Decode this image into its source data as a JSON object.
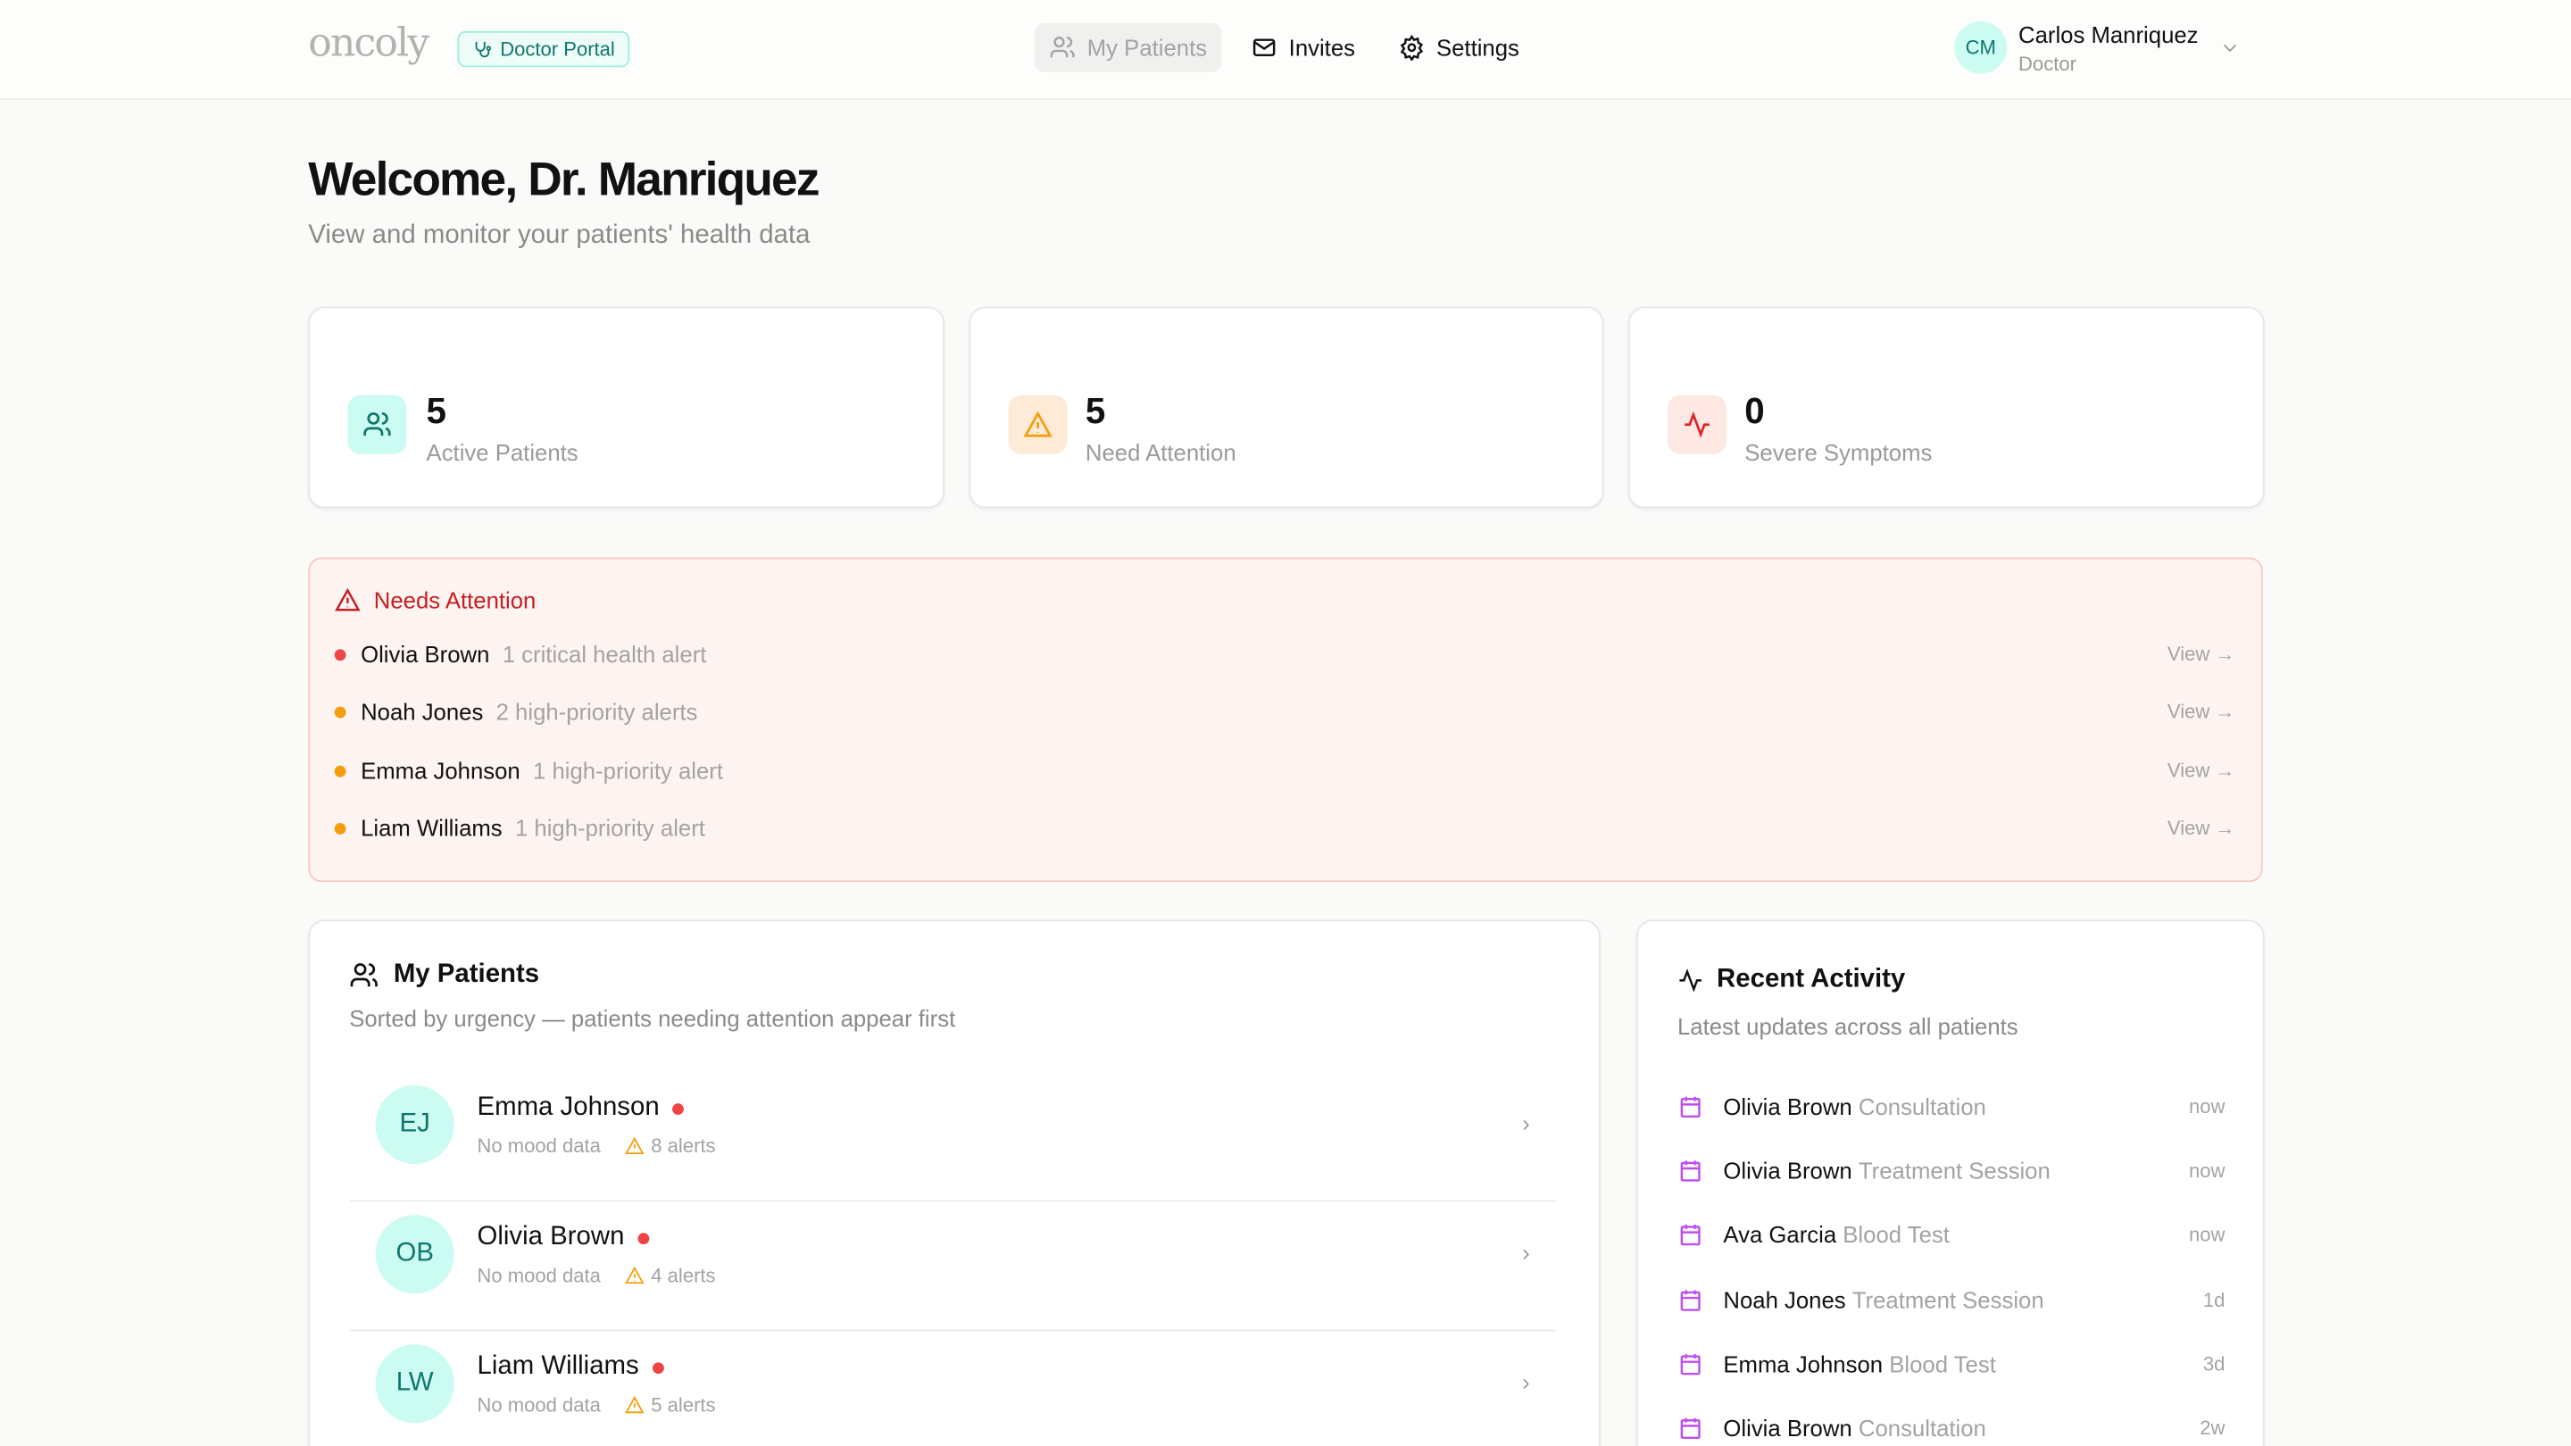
{
  "header": {
    "logo": "oncoly",
    "portal_badge": "Doctor Portal",
    "nav": [
      {
        "label": "My Patients",
        "icon": "users-icon",
        "active": true
      },
      {
        "label": "Invites",
        "icon": "mail-icon",
        "active": false
      },
      {
        "label": "Settings",
        "icon": "gear-icon",
        "active": false
      }
    ],
    "user": {
      "initials": "CM",
      "name": "Carlos Manriquez",
      "role": "Doctor"
    }
  },
  "page": {
    "title": "Welcome, Dr. Manriquez",
    "subtitle": "View and monitor your patients' health data"
  },
  "stats": [
    {
      "value": "5",
      "label": "Active Patients",
      "icon": "users-icon",
      "color": "#0f766e",
      "bg": "#ccfbf1"
    },
    {
      "value": "5",
      "label": "Need Attention",
      "icon": "warning-icon",
      "color": "#f59e0b",
      "bg": "#fdebd8"
    },
    {
      "value": "0",
      "label": "Severe Symptoms",
      "icon": "activity-icon",
      "color": "#dc2626",
      "bg": "#fde8e4"
    }
  ],
  "needs_attention": {
    "title": "Needs Attention",
    "items": [
      {
        "name": "Olivia Brown",
        "detail": "1 critical health alert",
        "severity": "critical",
        "action": "View →"
      },
      {
        "name": "Noah Jones",
        "detail": "2 high-priority alerts",
        "severity": "high",
        "action": "View →"
      },
      {
        "name": "Emma Johnson",
        "detail": "1 high-priority alert",
        "severity": "high",
        "action": "View →"
      },
      {
        "name": "Liam Williams",
        "detail": "1 high-priority alert",
        "severity": "high",
        "action": "View →"
      }
    ]
  },
  "patients": {
    "title": "My Patients",
    "subtitle": "Sorted by urgency — patients needing attention appear first",
    "items": [
      {
        "initials": "EJ",
        "name": "Emma Johnson",
        "mood": "No mood data",
        "alerts": "8 alerts"
      },
      {
        "initials": "OB",
        "name": "Olivia Brown",
        "mood": "No mood data",
        "alerts": "4 alerts"
      },
      {
        "initials": "LW",
        "name": "Liam Williams",
        "mood": "No mood data",
        "alerts": "5 alerts"
      }
    ]
  },
  "activity": {
    "title": "Recent Activity",
    "subtitle": "Latest updates across all patients",
    "items": [
      {
        "name": "Olivia Brown",
        "event": "Consultation",
        "time": "now"
      },
      {
        "name": "Olivia Brown",
        "event": "Treatment Session",
        "time": "now"
      },
      {
        "name": "Ava Garcia",
        "event": "Blood Test",
        "time": "now"
      },
      {
        "name": "Noah Jones",
        "event": "Treatment Session",
        "time": "1d"
      },
      {
        "name": "Emma Johnson",
        "event": "Blood Test",
        "time": "3d"
      },
      {
        "name": "Olivia Brown",
        "event": "Consultation",
        "time": "2w"
      }
    ]
  }
}
